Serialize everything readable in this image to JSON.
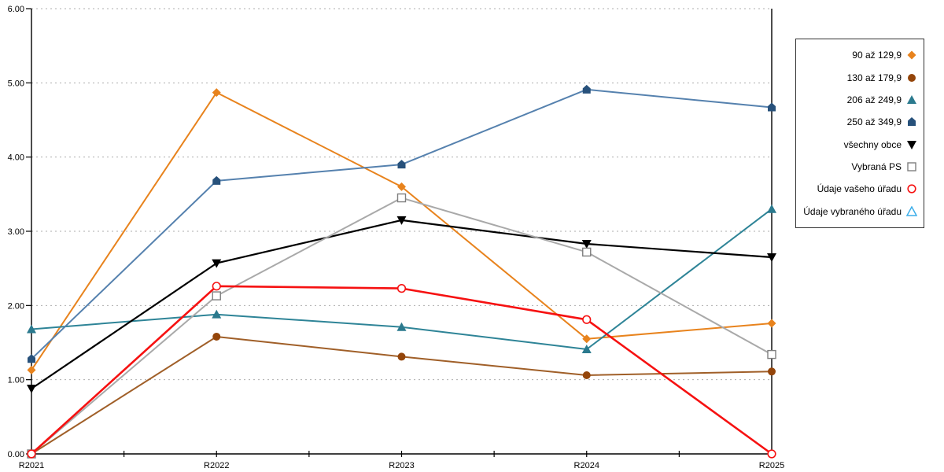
{
  "chart_data": {
    "type": "line",
    "title": "",
    "xlabel": "",
    "ylabel": "",
    "categories": [
      "R2021",
      "R2022",
      "R2023",
      "R2024",
      "R2025"
    ],
    "ylim": [
      0,
      6
    ],
    "y_tick_step": 1,
    "y_tick_labels": [
      "0.00",
      "1.00",
      "2.00",
      "3.00",
      "4.00",
      "5.00",
      "6.00"
    ],
    "grid": "horizontal-dotted",
    "grid_color": "#ADADAD",
    "axis_color": "#000000",
    "legend_position": "right",
    "series": [
      {
        "name": "90 až 129,9",
        "marker": "diamond",
        "line_color": "#E8831D",
        "marker_color": "#E8831D",
        "line_width": 2,
        "values": [
          1.13,
          4.87,
          3.6,
          1.55,
          1.76
        ]
      },
      {
        "name": "130 až 179,9",
        "marker": "circle",
        "line_color": "#A05F28",
        "marker_color": "#94450A",
        "line_width": 2,
        "values": [
          0.0,
          1.58,
          1.31,
          1.06,
          1.11
        ]
      },
      {
        "name": "206 až 249,9",
        "marker": "triangle-up",
        "line_color": "#2E8497",
        "marker_color": "#2B7A8E",
        "line_width": 2,
        "values": [
          1.68,
          1.88,
          1.71,
          1.41,
          3.3
        ]
      },
      {
        "name": "250 až 349,9",
        "marker": "pentagon",
        "line_color": "#5581AE",
        "marker_color": "#27517B",
        "line_width": 2,
        "values": [
          1.28,
          3.68,
          3.9,
          4.91,
          4.67
        ]
      },
      {
        "name": "všechny obce",
        "marker": "triangle-down",
        "line_color": "#000000",
        "marker_color": "#000000",
        "line_width": 2.2,
        "values": [
          0.88,
          2.57,
          3.15,
          2.83,
          2.65
        ]
      },
      {
        "name": "Vybraná PS",
        "marker": "square-open",
        "line_color": "#A9A9A9",
        "marker_color": "#7F7F7F",
        "line_width": 2,
        "values": [
          0.0,
          2.13,
          3.45,
          2.72,
          1.34
        ]
      },
      {
        "name": "Údaje vašeho úřadu",
        "marker": "circle-open",
        "line_color": "#F61111",
        "marker_color": "#F61111",
        "line_width": 2.6,
        "values": [
          0.0,
          2.26,
          2.23,
          1.81,
          0.0
        ]
      },
      {
        "name": "Údaje vybraného úřadu",
        "marker": "triangle-open",
        "line_color": "#3DAEE9",
        "marker_color": "#3DAEE9",
        "line_width": 2,
        "values": []
      }
    ]
  }
}
